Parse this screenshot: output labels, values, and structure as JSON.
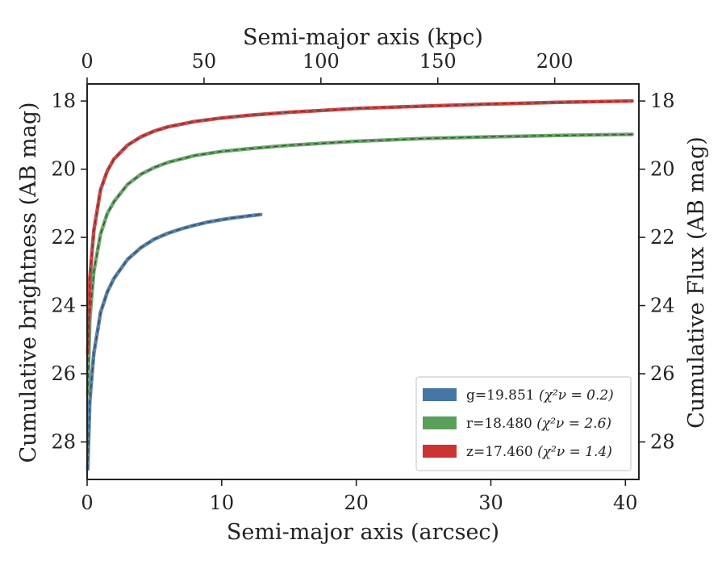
{
  "chart_data": {
    "type": "line",
    "title": "",
    "xlabel": "Semi-major axis (arcsec)",
    "ylabel": "Cumulative brightness (AB mag)",
    "top_xlabel": "Semi-major axis (kpc)",
    "right_ylabel": "Cumulative Flux (AB mag)",
    "xlim": [
      0,
      41
    ],
    "ylim": [
      29.1,
      17.5
    ],
    "y_inverted": true,
    "top_xlim": [
      0,
      236
    ],
    "xticks": [
      0,
      10,
      20,
      30,
      40
    ],
    "yticks": [
      18,
      20,
      22,
      24,
      26,
      28
    ],
    "top_xticks": [
      0,
      50,
      100,
      150,
      200
    ],
    "grid": false,
    "legend_position": "lower-right",
    "series": [
      {
        "name": "g=19.851",
        "chi_label": "(χ²ν = 0.2)",
        "color": "#4477a3",
        "x": [
          0.05,
          0.2,
          0.5,
          1.0,
          1.5,
          2.0,
          3.0,
          4.0,
          5.0,
          6.0,
          7.0,
          8.0,
          9.0,
          10.0,
          11.0,
          12.0,
          12.9
        ],
        "y": [
          28.8,
          26.8,
          25.4,
          24.2,
          23.6,
          23.2,
          22.65,
          22.3,
          22.05,
          21.88,
          21.75,
          21.64,
          21.55,
          21.48,
          21.42,
          21.37,
          21.33
        ]
      },
      {
        "name": "r=18.480",
        "chi_label": "(χ²ν = 2.6)",
        "color": "#5aa05a",
        "x": [
          0.05,
          0.2,
          0.5,
          1.0,
          1.5,
          2.0,
          3.0,
          4.0,
          5.0,
          6.0,
          8.0,
          10.0,
          12.0,
          15.0,
          20.0,
          25.0,
          30.0,
          35.0,
          40.5
        ],
        "y": [
          26.6,
          24.4,
          23.0,
          21.9,
          21.3,
          20.95,
          20.45,
          20.15,
          19.95,
          19.8,
          19.6,
          19.48,
          19.4,
          19.3,
          19.18,
          19.1,
          19.05,
          19.01,
          18.98
        ]
      },
      {
        "name": "z=17.460",
        "chi_label": "(χ²ν = 1.4)",
        "color": "#cc3333",
        "x": [
          0.05,
          0.2,
          0.5,
          1.0,
          1.5,
          2.0,
          3.0,
          4.0,
          5.0,
          6.0,
          8.0,
          10.0,
          12.0,
          15.0,
          20.0,
          25.0,
          30.0,
          35.0,
          40.5
        ],
        "y": [
          25.4,
          23.2,
          21.8,
          20.6,
          20.05,
          19.7,
          19.3,
          19.05,
          18.88,
          18.76,
          18.6,
          18.5,
          18.42,
          18.33,
          18.22,
          18.15,
          18.09,
          18.04,
          18.0
        ]
      }
    ]
  }
}
